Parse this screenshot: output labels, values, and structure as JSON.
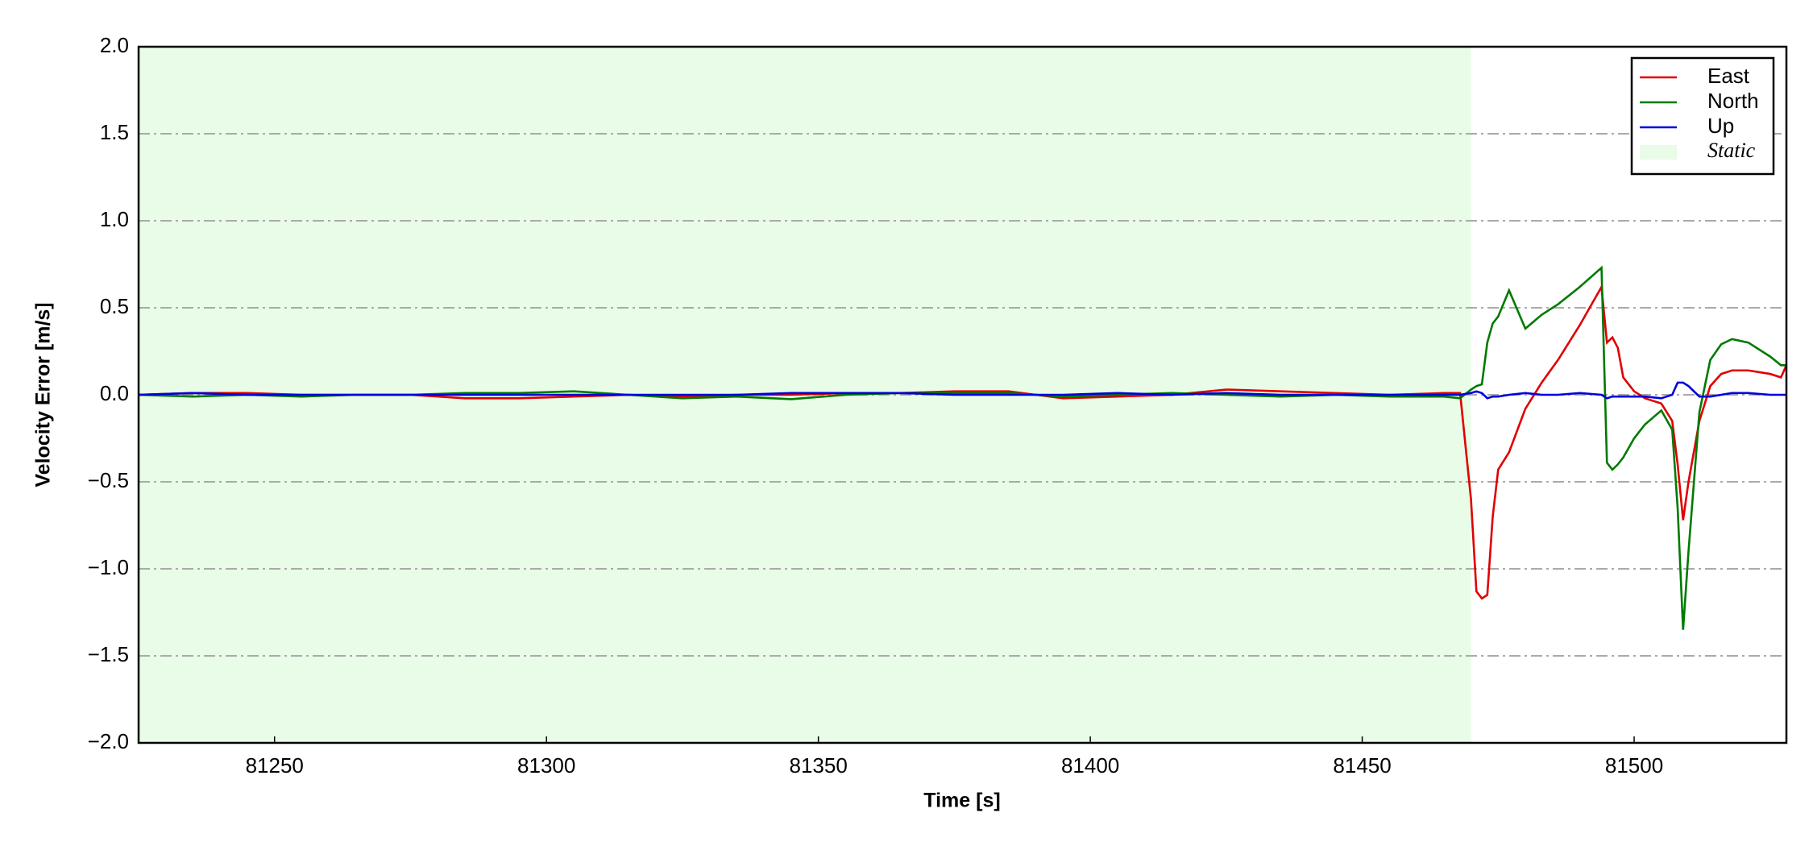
{
  "chart_data": {
    "type": "line",
    "xlabel": "Time [s]",
    "ylabel": "Velocity Error [m/s]",
    "x": [
      81225,
      81235,
      81245,
      81255,
      81265,
      81275,
      81285,
      81295,
      81305,
      81315,
      81325,
      81335,
      81345,
      81355,
      81365,
      81375,
      81385,
      81395,
      81405,
      81415,
      81425,
      81435,
      81445,
      81455,
      81465,
      81468,
      81470,
      81471,
      81472,
      81473,
      81474,
      81475,
      81477,
      81480,
      81483,
      81486,
      81490,
      81494,
      81495,
      81496,
      81497,
      81498,
      81500,
      81502,
      81505,
      81507,
      81508,
      81509,
      81510,
      81512,
      81514,
      81516,
      81518,
      81521,
      81525,
      81527,
      81528
    ],
    "series": [
      {
        "name": "East",
        "color": "#e00000",
        "values": [
          0,
          0.01,
          0.01,
          0,
          0,
          0,
          -0.02,
          -0.02,
          -0.01,
          0,
          -0.01,
          0,
          0,
          0.01,
          0.01,
          0.02,
          0.02,
          -0.02,
          -0.01,
          0,
          0.03,
          0.02,
          0.01,
          0,
          0.01,
          0.01,
          -0.6,
          -1.13,
          -1.17,
          -1.15,
          -0.7,
          -0.43,
          -0.33,
          -0.08,
          0.07,
          0.2,
          0.4,
          0.62,
          0.3,
          0.33,
          0.27,
          0.1,
          0.02,
          -0.02,
          -0.05,
          -0.15,
          -0.4,
          -0.72,
          -0.5,
          -0.15,
          0.05,
          0.12,
          0.14,
          0.14,
          0.12,
          0.1,
          0.17
        ]
      },
      {
        "name": "North",
        "color": "#007a00",
        "values": [
          0,
          -0.01,
          0,
          -0.01,
          0,
          0,
          0.01,
          0.01,
          0.02,
          0,
          -0.02,
          -0.01,
          -0.025,
          0,
          0.01,
          0.01,
          0.01,
          -0.01,
          0,
          0.01,
          0,
          -0.01,
          0,
          -0.01,
          -0.01,
          -0.02,
          0.03,
          0.05,
          0.06,
          0.3,
          0.41,
          0.45,
          0.6,
          0.38,
          0.46,
          0.52,
          0.62,
          0.73,
          -0.39,
          -0.43,
          -0.4,
          -0.36,
          -0.25,
          -0.17,
          -0.09,
          -0.2,
          -0.65,
          -1.35,
          -0.9,
          -0.1,
          0.2,
          0.29,
          0.32,
          0.3,
          0.22,
          0.17,
          0.17
        ]
      },
      {
        "name": "Up",
        "color": "#0000dd",
        "values": [
          0,
          0.01,
          0,
          0,
          0,
          0,
          0,
          0,
          0,
          0,
          0,
          0,
          0.01,
          0.01,
          0.01,
          0,
          0,
          0,
          0.01,
          0,
          0.01,
          0,
          0,
          0,
          0,
          0,
          0.01,
          0.02,
          0.01,
          -0.02,
          -0.01,
          -0.01,
          0,
          0.01,
          0,
          0,
          0.01,
          0,
          -0.02,
          -0.01,
          -0.01,
          -0.01,
          -0.01,
          -0.01,
          -0.02,
          0,
          0.07,
          0.07,
          0.05,
          -0.01,
          -0.01,
          0,
          0.01,
          0.01,
          0,
          0,
          0
        ]
      }
    ],
    "shaded_regions": [
      {
        "label": "Static",
        "x0": 81225,
        "x1": 81470,
        "color": "#e8fce8"
      }
    ],
    "xlim": [
      81225,
      81528
    ],
    "xticks": [
      81250,
      81300,
      81350,
      81400,
      81450,
      81500
    ],
    "ylim": [
      -2,
      2
    ],
    "yticks": [
      {
        "value": -2,
        "label": "−2.0"
      },
      {
        "value": -1.5,
        "label": "−1.5"
      },
      {
        "value": -1,
        "label": "−1.0"
      },
      {
        "value": -0.5,
        "label": "−0.5"
      },
      {
        "value": 0,
        "label": "0.0"
      },
      {
        "value": 0.5,
        "label": "0.5"
      },
      {
        "value": 1,
        "label": "1.0"
      },
      {
        "value": 1.5,
        "label": "1.5"
      },
      {
        "value": 2,
        "label": "2.0"
      }
    ],
    "grid": true,
    "legend": "upper right"
  }
}
